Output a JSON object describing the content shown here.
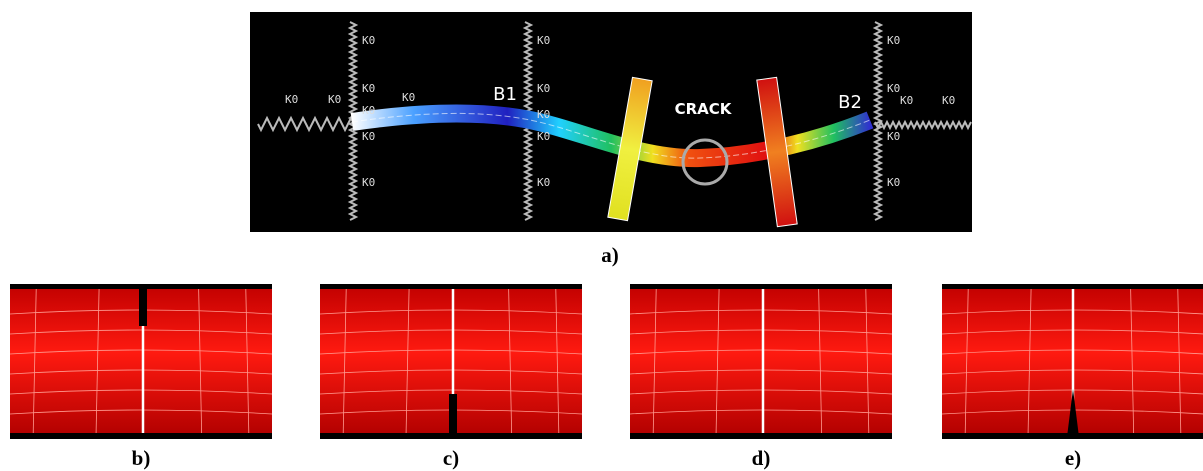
{
  "panel_a": {
    "caption": "a)",
    "bearing_labels": [
      "B1",
      "B2"
    ],
    "crack_label": "CRACK",
    "spring_labels": [
      "K0",
      "K0",
      "K0",
      "K0",
      "K0",
      "K0",
      "K0",
      "K0",
      "K0",
      "K0",
      "K0",
      "K0",
      "K0",
      "K0",
      "K0",
      "K0",
      "K0",
      "K0",
      "K0"
    ]
  },
  "panels": [
    {
      "caption": "b)"
    },
    {
      "caption": "c)"
    },
    {
      "caption": "d)"
    },
    {
      "caption": "e)"
    }
  ]
}
